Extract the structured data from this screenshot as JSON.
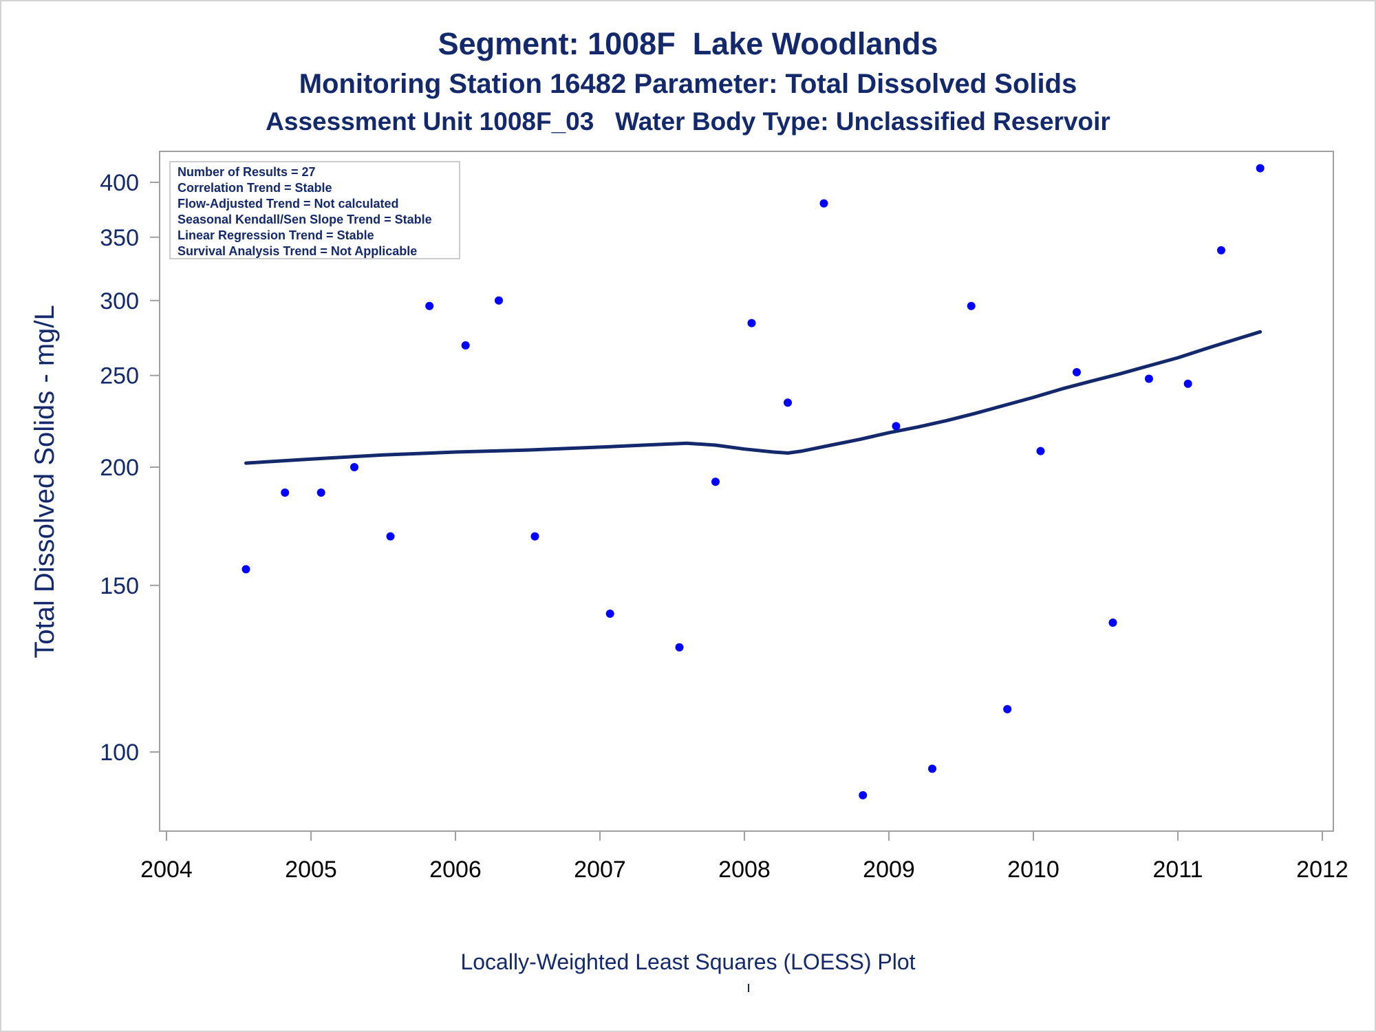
{
  "title_line1": "Segment: 1008F  Lake Woodlands",
  "title_line2": "Monitoring Station 16482 Parameter: Total Dissolved Solids",
  "title_line3": "Assessment Unit 1008F_03   Water Body Type: Unclassified Reservoir",
  "footnote": "Locally-Weighted Least Squares (LOESS) Plot",
  "stats_box": [
    "Number of Results = 27",
    "Correlation Trend = Stable",
    "Flow-Adjusted Trend = Not calculated",
    "Seasonal Kendall/Sen Slope Trend = Stable",
    "Linear Regression Trend = Stable",
    "Survival Analysis Trend = Not Applicable"
  ],
  "colors": {
    "points": "#0000ff",
    "loess_line": "#13296b",
    "text": "#13296b",
    "axis": "#a0a0a0"
  },
  "chart_data": {
    "type": "scatter",
    "ylabel": "Total Dissolved Solids - mg/L",
    "xlabel": "",
    "y_scale": "log",
    "xlim": [
      2004,
      2012
    ],
    "ylim": [
      89,
      420
    ],
    "x_ticks": [
      2004,
      2005,
      2006,
      2007,
      2008,
      2009,
      2010,
      2011,
      2012
    ],
    "y_ticks": [
      100,
      150,
      200,
      250,
      300,
      350,
      400
    ],
    "series": [
      {
        "kind": "points",
        "x": [
          2004.55,
          2004.82,
          2005.07,
          2005.3,
          2005.55,
          2005.82,
          2006.07,
          2006.3,
          2006.55,
          2007.07,
          2007.55,
          2007.8,
          2008.05,
          2008.3,
          2008.55,
          2008.82,
          2009.05,
          2009.3,
          2009.57,
          2009.82,
          2010.05,
          2010.3,
          2010.55,
          2010.8,
          2011.07,
          2011.3,
          2011.57
        ],
        "y": [
          156,
          188,
          188,
          200,
          169,
          296,
          269,
          300,
          169,
          140,
          129,
          193,
          284,
          234,
          380,
          90,
          221,
          96,
          296,
          111,
          208,
          252,
          137,
          248,
          245,
          339,
          414
        ]
      },
      {
        "kind": "line",
        "x": [
          2004.55,
          2005.0,
          2005.5,
          2006.0,
          2006.5,
          2007.0,
          2007.3,
          2007.6,
          2007.8,
          2008.0,
          2008.2,
          2008.3,
          2008.4,
          2008.6,
          2008.8,
          2009.0,
          2009.2,
          2009.4,
          2009.6,
          2009.8,
          2010.0,
          2010.2,
          2010.4,
          2010.6,
          2010.8,
          2011.0,
          2011.2,
          2011.4,
          2011.57
        ],
        "y": [
          202,
          204,
          206,
          207.5,
          208.5,
          210,
          211,
          212,
          211,
          209,
          207.5,
          207,
          208,
          211,
          214,
          217.5,
          220.5,
          224,
          228,
          232.5,
          237,
          242,
          246.5,
          251,
          256,
          261,
          267,
          273,
          278
        ]
      }
    ]
  }
}
